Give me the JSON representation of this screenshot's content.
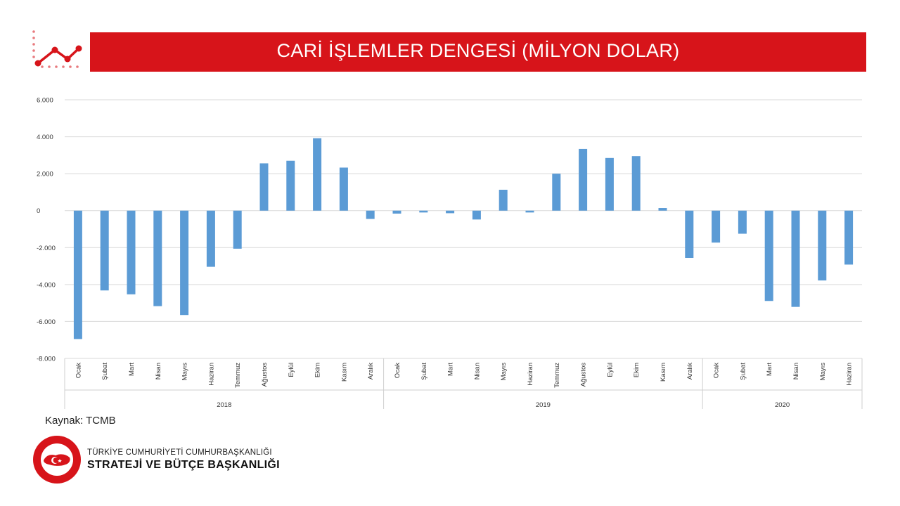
{
  "header": {
    "title": "CARİ İŞLEMLER DENGESİ (MİLYON DOLAR)"
  },
  "colors": {
    "brand_red": "#d7141a",
    "bar": "#5b9bd5",
    "grid": "#d9d9d9"
  },
  "footer": {
    "source": "Kaynak: TCMB",
    "org_line1": "TÜRKİYE CUMHURİYETİ CUMHURBAŞKANLIĞI",
    "org_line2": "STRATEJİ VE BÜTÇE BAŞKANLIĞI",
    "seal_text": "T.C. CUMHURBAŞKANLIĞI STRATEJİ VE BÜTÇE BAŞKANLIĞI"
  },
  "chart_data": {
    "type": "bar",
    "title": "",
    "xlabel": "",
    "ylabel": "",
    "ylim": [
      -8000,
      6000
    ],
    "yticks": [
      6000,
      4000,
      2000,
      0,
      -2000,
      -4000,
      -6000,
      -8000
    ],
    "ytick_labels": [
      "6.000",
      "4.000",
      "2.000",
      "0",
      "-2.000",
      "-4.000",
      "-6.000",
      "-8.000"
    ],
    "grid": true,
    "legend": "none",
    "groups": [
      {
        "label": "2018",
        "categories": [
          "Ocak",
          "Şubat",
          "Mart",
          "Nisan",
          "Mayıs",
          "Haziran",
          "Temmuz",
          "Ağustos",
          "Eylül",
          "Ekim",
          "Kasım",
          "Aralık"
        ],
        "values": [
          -6950,
          -4320,
          -4530,
          -5170,
          -5650,
          -3040,
          -2060,
          2560,
          2700,
          3920,
          2330,
          -450
        ]
      },
      {
        "label": "2019",
        "categories": [
          "Ocak",
          "Şubat",
          "Mart",
          "Nisan",
          "Mayıs",
          "Haziran",
          "Temmuz",
          "Ağustos",
          "Eylül",
          "Ekim",
          "Kasım",
          "Aralık"
        ],
        "values": [
          -160,
          -100,
          -140,
          -480,
          1130,
          -100,
          2000,
          3340,
          2850,
          2950,
          140,
          -2560
        ]
      },
      {
        "label": "2020",
        "categories": [
          "Ocak",
          "Şubat",
          "Mart",
          "Nisan",
          "Mayıs",
          "Haziran"
        ],
        "values": [
          -1730,
          -1250,
          -4890,
          -5210,
          -3780,
          -2920
        ]
      }
    ]
  }
}
